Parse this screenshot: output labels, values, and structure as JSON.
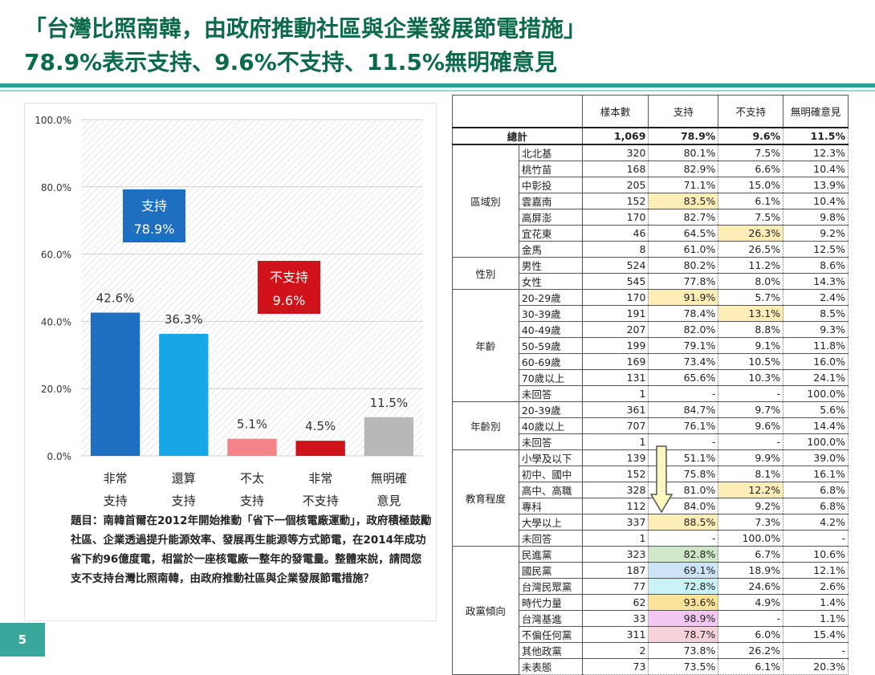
{
  "header": {
    "line1": "「台灣比照南韓，由政府推動社區與企業發展節電措施」",
    "line2": "78.9%表示支持、9.6%不支持、11.5%無明確意見"
  },
  "chart_data": {
    "type": "bar",
    "categories": [
      "非常\n支持",
      "還算\n支持",
      "不太\n支持",
      "非常\n不支持",
      "無明確\n意見"
    ],
    "values": [
      42.6,
      36.3,
      5.1,
      4.5,
      11.5
    ],
    "value_labels": [
      "42.6%",
      "36.3%",
      "5.1%",
      "4.5%",
      "11.5%"
    ],
    "colors": [
      "#1f6fc1",
      "#16a7e6",
      "#f4838a",
      "#d0121a",
      "#b8b8b8"
    ],
    "ylim": [
      0,
      100
    ],
    "yticks": [
      0,
      20,
      40,
      60,
      80,
      100
    ],
    "ytick_labels": [
      "0.0%",
      "20.0%",
      "40.0%",
      "60.0%",
      "80.0%",
      "100.0%"
    ],
    "annotations": [
      {
        "label": "支持",
        "value": "78.9%",
        "color": "#1f6fc1"
      },
      {
        "label": "不支持",
        "value": "9.6%",
        "color": "#d0121a"
      }
    ]
  },
  "question": "題目：南韓首爾在2012年開始推動「省下一個核電廠運動」，政府積極鼓勵社區、企業透過提升能源效率、發展再生能源等方式節電，在2014年成功省下約96億度電，相當於一座核電廠一整年的發電量。整體來說，請問您支不支持台灣比照南韓，由政府推動社區與企業發展節電措施？",
  "page_number": "5",
  "table": {
    "headers": [
      "樣本數",
      "支持",
      "不支持",
      "無明確意見"
    ],
    "total": {
      "label": "總計",
      "cells": [
        "1,069",
        "78.9%",
        "9.6%",
        "11.5%"
      ]
    },
    "groups": [
      {
        "name": "區域別",
        "rows": [
          {
            "label": "北北基",
            "cells": [
              "320",
              "80.1%",
              "7.5%",
              "12.3%"
            ]
          },
          {
            "label": "桃竹苗",
            "cells": [
              "168",
              "82.9%",
              "6.6%",
              "10.4%"
            ]
          },
          {
            "label": "中彰投",
            "cells": [
              "205",
              "71.1%",
              "15.0%",
              "13.9%"
            ]
          },
          {
            "label": "雲嘉南",
            "cells": [
              "152",
              "83.5%",
              "6.1%",
              "10.4%"
            ]
          },
          {
            "label": "高屏澎",
            "cells": [
              "170",
              "82.7%",
              "7.5%",
              "9.8%"
            ]
          },
          {
            "label": "宜花東",
            "cells": [
              "46",
              "64.5%",
              "26.3%",
              "9.2%"
            ]
          },
          {
            "label": "金馬",
            "cells": [
              "8",
              "61.0%",
              "26.5%",
              "12.5%"
            ]
          }
        ]
      },
      {
        "name": "性別",
        "rows": [
          {
            "label": "男性",
            "cells": [
              "524",
              "80.2%",
              "11.2%",
              "8.6%"
            ]
          },
          {
            "label": "女性",
            "cells": [
              "545",
              "77.8%",
              "8.0%",
              "14.3%"
            ]
          }
        ]
      },
      {
        "name": "年齡",
        "rows": [
          {
            "label": "20-29歲",
            "cells": [
              "170",
              "91.9%",
              "5.7%",
              "2.4%"
            ]
          },
          {
            "label": "30-39歲",
            "cells": [
              "191",
              "78.4%",
              "13.1%",
              "8.5%"
            ]
          },
          {
            "label": "40-49歲",
            "cells": [
              "207",
              "82.0%",
              "8.8%",
              "9.3%"
            ]
          },
          {
            "label": "50-59歲",
            "cells": [
              "199",
              "79.1%",
              "9.1%",
              "11.8%"
            ]
          },
          {
            "label": "60-69歲",
            "cells": [
              "169",
              "73.4%",
              "10.5%",
              "16.0%"
            ]
          },
          {
            "label": "70歲以上",
            "cells": [
              "131",
              "65.6%",
              "10.3%",
              "24.1%"
            ]
          },
          {
            "label": "未回答",
            "cells": [
              "1",
              "-",
              "-",
              "100.0%"
            ]
          }
        ]
      },
      {
        "name": "年齡別",
        "rows": [
          {
            "label": "20-39歲",
            "cells": [
              "361",
              "84.7%",
              "9.7%",
              "5.6%"
            ]
          },
          {
            "label": "40歲以上",
            "cells": [
              "707",
              "76.1%",
              "9.6%",
              "14.4%"
            ]
          },
          {
            "label": "未回答",
            "cells": [
              "1",
              "-",
              "-",
              "100.0%"
            ]
          }
        ]
      },
      {
        "name": "教育程度",
        "rows": [
          {
            "label": "小學及以下",
            "cells": [
              "139",
              "51.1%",
              "9.9%",
              "39.0%"
            ]
          },
          {
            "label": "初中、國中",
            "cells": [
              "152",
              "75.8%",
              "8.1%",
              "16.1%"
            ]
          },
          {
            "label": "高中、高職",
            "cells": [
              "328",
              "81.0%",
              "12.2%",
              "6.8%"
            ]
          },
          {
            "label": "專科",
            "cells": [
              "112",
              "84.0%",
              "9.2%",
              "6.8%"
            ]
          },
          {
            "label": "大學以上",
            "cells": [
              "337",
              "88.5%",
              "7.3%",
              "4.2%"
            ]
          },
          {
            "label": "未回答",
            "cells": [
              "1",
              "-",
              "100.0%",
              "-"
            ]
          }
        ]
      },
      {
        "name": "政黨傾向",
        "rows": [
          {
            "label": "民進黨",
            "cells": [
              "323",
              "82.8%",
              "6.7%",
              "10.6%"
            ]
          },
          {
            "label": "國民黨",
            "cells": [
              "187",
              "69.1%",
              "18.9%",
              "12.1%"
            ]
          },
          {
            "label": "台灣民眾黨",
            "cells": [
              "77",
              "72.8%",
              "24.6%",
              "2.6%"
            ]
          },
          {
            "label": "時代力量",
            "cells": [
              "62",
              "93.6%",
              "4.9%",
              "1.4%"
            ]
          },
          {
            "label": "台灣基進",
            "cells": [
              "33",
              "98.9%",
              "-",
              "1.1%"
            ]
          },
          {
            "label": "不偏任何黨",
            "cells": [
              "311",
              "78.7%",
              "6.0%",
              "15.4%"
            ]
          },
          {
            "label": "其他政黨",
            "cells": [
              "2",
              "73.8%",
              "26.2%",
              "-"
            ]
          },
          {
            "label": "未表態",
            "cells": [
              "73",
              "73.5%",
              "6.1%",
              "20.3%"
            ]
          }
        ]
      }
    ],
    "highlights": {
      "0.3.1": "#fdeeb8",
      "0.5.2": "#fdeeb8",
      "2.0.1": "#fdeeb8",
      "2.1.2": "#fdeeb8",
      "4.2.2": "#fdeeb8",
      "4.4.1": "#fdeeb8",
      "5.0.1": "#cfe8c7",
      "5.1.1": "#cde3f6",
      "5.2.1": "#c8f2f4",
      "5.3.1": "#fbe39a",
      "5.4.1": "#f2c8f2",
      "5.5.1": "#f8d2da"
    }
  }
}
